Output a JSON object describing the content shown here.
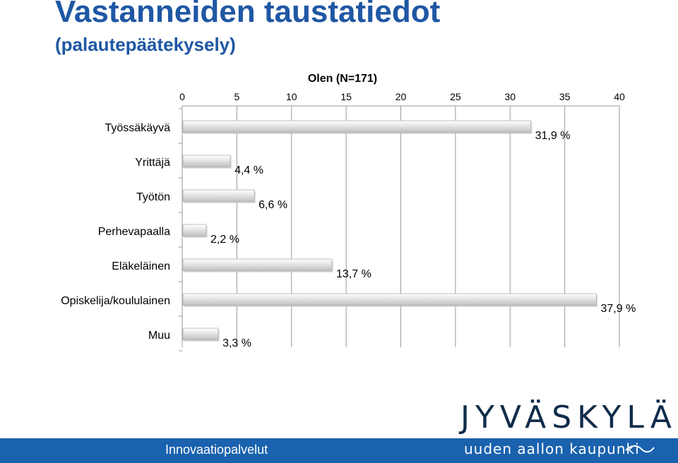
{
  "page": {
    "title": "Vastanneiden taustatiedot",
    "subtitle": "(palautepäätekysely)",
    "footer_text": "Innovaatiopalvelut",
    "logo_main": "JYVÄSKYLÄ",
    "logo_sub": "uuden aallon kaupunki",
    "colors": {
      "title": "#1f57a4",
      "footer_bar": "#1a62ae",
      "bar_light": "#ffffff",
      "bar_mid": "#e4e4e4",
      "bar_dark": "#bdbdbd",
      "gridline": "#9a9a9a"
    }
  },
  "chart_data": {
    "type": "bar",
    "orientation": "horizontal",
    "title": "Olen (N=171)",
    "categories": [
      "Työssäkäyvä",
      "Yrittäjä",
      "Työtön",
      "Perhevapaalla",
      "Eläkeläinen",
      "Opiskelija/koululainen",
      "Muu"
    ],
    "values": [
      31.9,
      4.4,
      6.6,
      2.2,
      13.7,
      37.9,
      3.3
    ],
    "value_labels": [
      "31,9 %",
      "4,4 %",
      "6,6 %",
      "2,2 %",
      "13,7 %",
      "37,9 %",
      "3,3 %"
    ],
    "xlim": [
      0,
      40
    ],
    "xticks": [
      0,
      5,
      10,
      15,
      20,
      25,
      30,
      35,
      40
    ],
    "xaxis_position": "top",
    "grid": true,
    "legend": "none"
  }
}
